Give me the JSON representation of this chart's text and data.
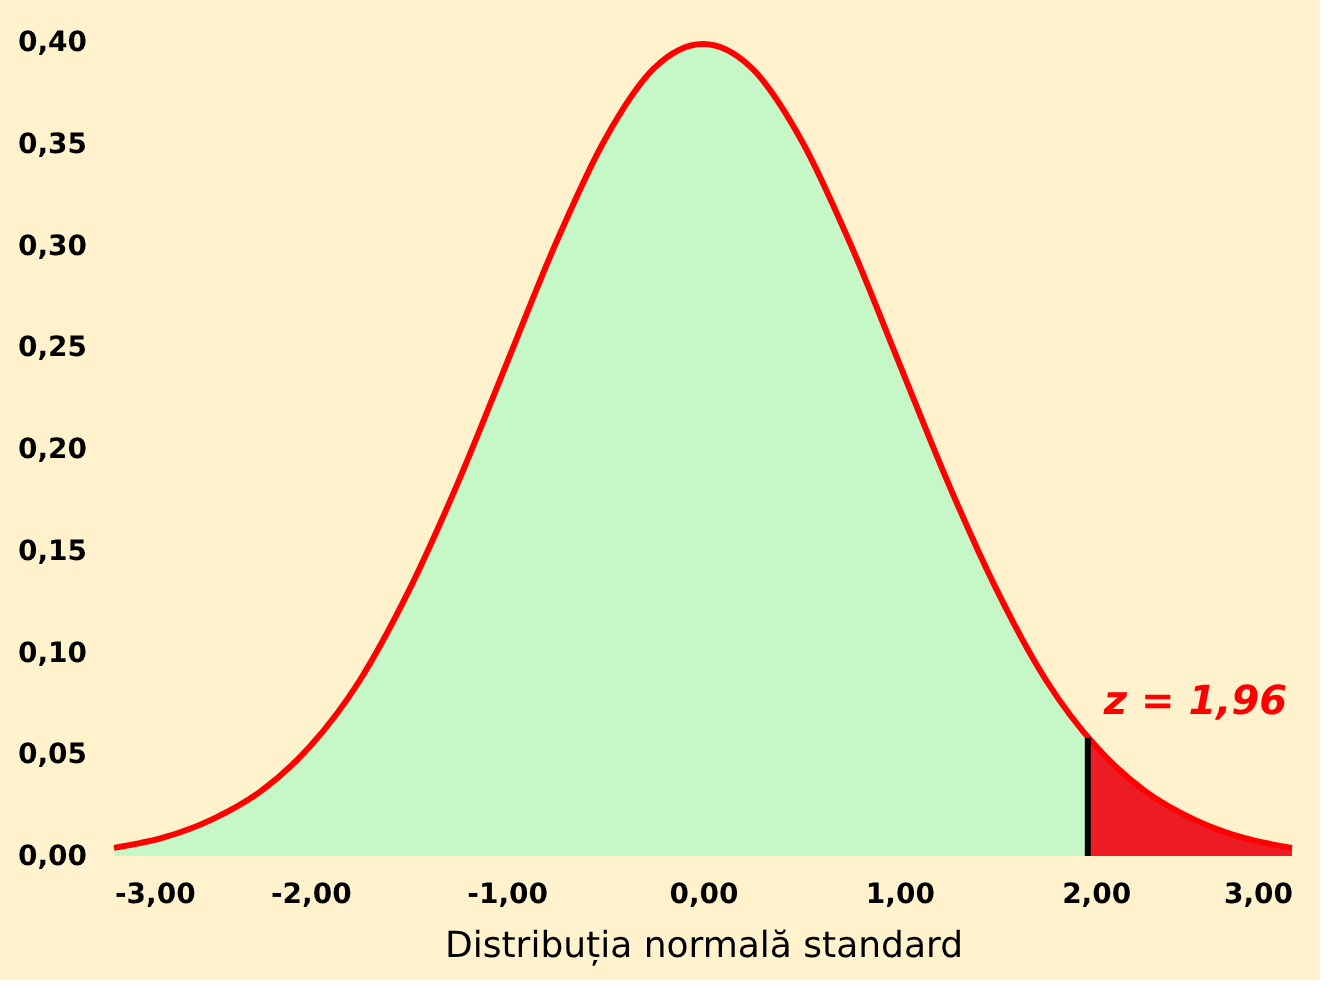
{
  "chart_data": {
    "type": "area",
    "xlabel": "Distribuția normală standard",
    "xlim": [
      -3,
      3
    ],
    "xticks": [
      {
        "value": -3,
        "label": "-3,00"
      },
      {
        "value": -2,
        "label": "-2,00"
      },
      {
        "value": -1,
        "label": "-1,00"
      },
      {
        "value": 0,
        "label": "0,00"
      },
      {
        "value": 1,
        "label": "1,00"
      },
      {
        "value": 2,
        "label": "2,00"
      },
      {
        "value": 3,
        "label": "3,00"
      }
    ],
    "ylim": [
      0,
      0.4
    ],
    "yticks": [
      {
        "value": 0,
        "label": "0,00"
      },
      {
        "value": 0.05,
        "label": "0,05"
      },
      {
        "value": 0.1,
        "label": "0,10"
      },
      {
        "value": 0.15,
        "label": "0,15"
      },
      {
        "value": 0.2,
        "label": "0,20"
      },
      {
        "value": 0.25,
        "label": "0,25"
      },
      {
        "value": 0.3,
        "label": "0,30"
      },
      {
        "value": 0.35,
        "label": "0,35"
      },
      {
        "value": 0.4,
        "label": "0,40"
      }
    ],
    "grid": false,
    "series": [
      {
        "type": "area",
        "color": "#c6f7c6",
        "x": [
          -3,
          -2.75,
          -2.5,
          -2.25,
          -2,
          -1.75,
          -1.5,
          -1.25,
          -1,
          -0.75,
          -0.5,
          -0.25,
          0,
          0.25,
          0.5,
          0.75,
          1,
          1.25,
          1.5,
          1.75,
          1.96
        ],
        "values": [
          0.004,
          0.009,
          0.018,
          0.032,
          0.054,
          0.086,
          0.13,
          0.183,
          0.242,
          0.301,
          0.352,
          0.387,
          0.399,
          0.387,
          0.352,
          0.301,
          0.242,
          0.183,
          0.13,
          0.086,
          0.058
        ]
      },
      {
        "type": "area",
        "color": "#ed1c24",
        "x": [
          1.96,
          2,
          2.25,
          2.5,
          2.75,
          3
        ],
        "values": [
          0.058,
          0.054,
          0.032,
          0.018,
          0.009,
          0.004
        ]
      },
      {
        "type": "line",
        "color": "#ff0000",
        "x": [
          -3,
          -2.75,
          -2.5,
          -2.25,
          -2,
          -1.75,
          -1.5,
          -1.25,
          -1,
          -0.75,
          -0.5,
          -0.25,
          0,
          0.25,
          0.5,
          0.75,
          1,
          1.25,
          1.5,
          1.75,
          2,
          2.25,
          2.5,
          2.75,
          3
        ],
        "values": [
          0.004,
          0.009,
          0.018,
          0.032,
          0.054,
          0.086,
          0.13,
          0.183,
          0.242,
          0.301,
          0.352,
          0.387,
          0.399,
          0.387,
          0.352,
          0.301,
          0.242,
          0.183,
          0.13,
          0.086,
          0.054,
          0.032,
          0.018,
          0.009,
          0.004
        ]
      },
      {
        "type": "line",
        "color": "#000000",
        "x": [
          1.96,
          1.96
        ],
        "values": [
          0,
          0.058
        ]
      }
    ],
    "annotations": [
      {
        "text": "z = 1,96",
        "x": 1.96,
        "y": 0.058
      }
    ]
  }
}
